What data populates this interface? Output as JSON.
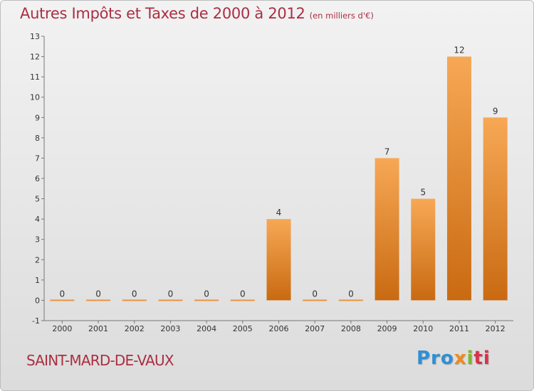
{
  "header": {
    "title": "Autres Impôts et Taxes de 2000 à 2012",
    "unit": "(en milliers d'€)"
  },
  "footer": {
    "commune": "SAINT-MARD-DE-VAUX",
    "logo": [
      "Pro",
      "x",
      "i",
      "ti"
    ]
  },
  "colors": {
    "title": "#ab2e42",
    "bar_light": "#f7a855",
    "bar_dark": "#c96a12"
  },
  "chart_data": {
    "type": "bar",
    "title": "Autres Impôts et Taxes de 2000 à 2012",
    "unit": "(en milliers d'€)",
    "categories": [
      "2000",
      "2001",
      "2002",
      "2003",
      "2004",
      "2005",
      "2006",
      "2007",
      "2008",
      "2009",
      "2010",
      "2011",
      "2012"
    ],
    "values": [
      0,
      0,
      0,
      0,
      0,
      0,
      4,
      0,
      0,
      7,
      5,
      12,
      9
    ],
    "ylim": [
      -1,
      13
    ],
    "yticks": [
      -1,
      0,
      1,
      2,
      3,
      4,
      5,
      6,
      7,
      8,
      9,
      10,
      11,
      12,
      13
    ],
    "grid": false,
    "legend": "none"
  }
}
